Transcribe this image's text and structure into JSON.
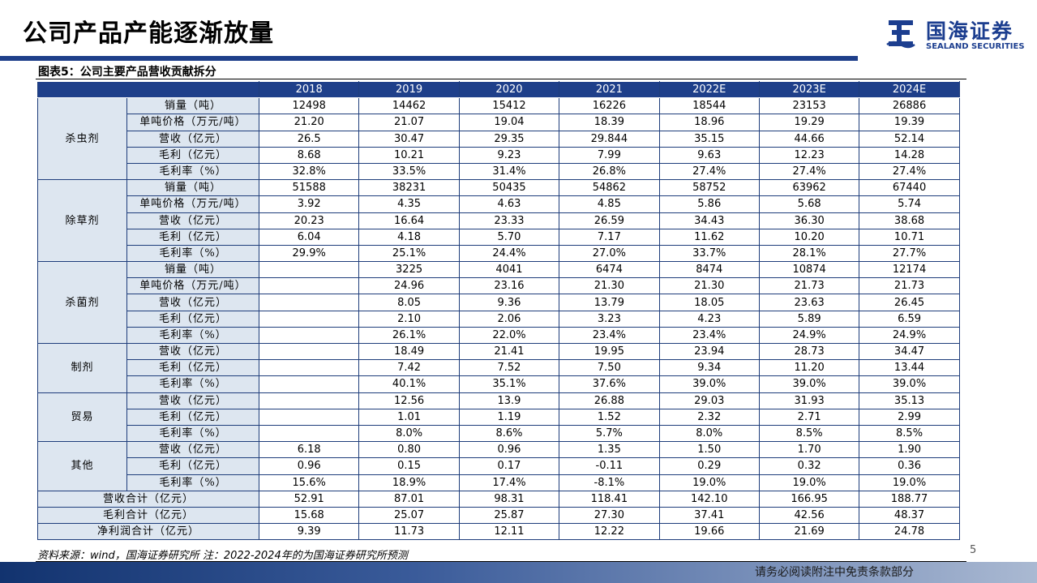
{
  "page": {
    "title": "公司产品产能逐渐放量",
    "logo_cn": "国海证券",
    "logo_en": "SEALAND SECURITIES",
    "caption": "图表5：公司主要产品营收贡献拆分",
    "source": "资料来源：wind，国海证券研究所 注：2022-2024年的为国海证券研究所预测",
    "page_number": "5",
    "disclaimer": "请务必阅读附注中免责条款部分"
  },
  "table": {
    "years": [
      "2018",
      "2019",
      "2020",
      "2021",
      "2022E",
      "2023E",
      "2024E"
    ],
    "groups": [
      {
        "name": "杀虫剂",
        "rows": [
          {
            "metric": "销量（吨）",
            "values": [
              "12498",
              "14462",
              "15412",
              "16226",
              "18544",
              "23153",
              "26886"
            ]
          },
          {
            "metric": "单吨价格（万元/吨）",
            "values": [
              "21.20",
              "21.07",
              "19.04",
              "18.39",
              "18.96",
              "19.29",
              "19.39"
            ]
          },
          {
            "metric": "营收（亿元）",
            "values": [
              "26.5",
              "30.47",
              "29.35",
              "29.844",
              "35.15",
              "44.66",
              "52.14"
            ]
          },
          {
            "metric": "毛利（亿元）",
            "values": [
              "8.68",
              "10.21",
              "9.23",
              "7.99",
              "9.63",
              "12.23",
              "14.28"
            ]
          },
          {
            "metric": "毛利率（%）",
            "values": [
              "32.8%",
              "33.5%",
              "31.4%",
              "26.8%",
              "27.4%",
              "27.4%",
              "27.4%"
            ]
          }
        ]
      },
      {
        "name": "除草剂",
        "rows": [
          {
            "metric": "销量（吨）",
            "values": [
              "51588",
              "38231",
              "50435",
              "54862",
              "58752",
              "63962",
              "67440"
            ]
          },
          {
            "metric": "单吨价格（万元/吨）",
            "values": [
              "3.92",
              "4.35",
              "4.63",
              "4.85",
              "5.86",
              "5.68",
              "5.74"
            ]
          },
          {
            "metric": "营收（亿元）",
            "values": [
              "20.23",
              "16.64",
              "23.33",
              "26.59",
              "34.43",
              "36.30",
              "38.68"
            ]
          },
          {
            "metric": "毛利（亿元）",
            "values": [
              "6.04",
              "4.18",
              "5.70",
              "7.17",
              "11.62",
              "10.20",
              "10.71"
            ]
          },
          {
            "metric": "毛利率（%）",
            "values": [
              "29.9%",
              "25.1%",
              "24.4%",
              "27.0%",
              "33.7%",
              "28.1%",
              "27.7%"
            ]
          }
        ]
      },
      {
        "name": "杀菌剂",
        "rows": [
          {
            "metric": "销量（吨）",
            "values": [
              "",
              "3225",
              "4041",
              "6474",
              "8474",
              "10874",
              "12174"
            ]
          },
          {
            "metric": "单吨价格（万元/吨）",
            "values": [
              "",
              "24.96",
              "23.16",
              "21.30",
              "21.30",
              "21.73",
              "21.73"
            ]
          },
          {
            "metric": "营收（亿元）",
            "values": [
              "",
              "8.05",
              "9.36",
              "13.79",
              "18.05",
              "23.63",
              "26.45"
            ]
          },
          {
            "metric": "毛利（亿元）",
            "values": [
              "",
              "2.10",
              "2.06",
              "3.23",
              "4.23",
              "5.89",
              "6.59"
            ]
          },
          {
            "metric": "毛利率（%）",
            "values": [
              "",
              "26.1%",
              "22.0%",
              "23.4%",
              "23.4%",
              "24.9%",
              "24.9%"
            ]
          }
        ]
      },
      {
        "name": "制剂",
        "rows": [
          {
            "metric": "营收（亿元）",
            "values": [
              "",
              "18.49",
              "21.41",
              "19.95",
              "23.94",
              "28.73",
              "34.47"
            ]
          },
          {
            "metric": "毛利（亿元）",
            "values": [
              "",
              "7.42",
              "7.52",
              "7.50",
              "9.34",
              "11.20",
              "13.44"
            ]
          },
          {
            "metric": "毛利率（%）",
            "values": [
              "",
              "40.1%",
              "35.1%",
              "37.6%",
              "39.0%",
              "39.0%",
              "39.0%"
            ]
          }
        ]
      },
      {
        "name": "贸易",
        "rows": [
          {
            "metric": "营收（亿元）",
            "values": [
              "",
              "12.56",
              "13.9",
              "26.88",
              "29.03",
              "31.93",
              "35.13"
            ]
          },
          {
            "metric": "毛利（亿元）",
            "values": [
              "",
              "1.01",
              "1.19",
              "1.52",
              "2.32",
              "2.71",
              "2.99"
            ]
          },
          {
            "metric": "毛利率（%）",
            "values": [
              "",
              "8.0%",
              "8.6%",
              "5.7%",
              "8.0%",
              "8.5%",
              "8.5%"
            ]
          }
        ]
      },
      {
        "name": "其他",
        "rows": [
          {
            "metric": "营收（亿元）",
            "values": [
              "6.18",
              "0.80",
              "0.96",
              "1.35",
              "1.50",
              "1.70",
              "1.90"
            ]
          },
          {
            "metric": "毛利（亿元）",
            "values": [
              "0.96",
              "0.15",
              "0.17",
              "-0.11",
              "0.29",
              "0.32",
              "0.36"
            ]
          },
          {
            "metric": "毛利率（%）",
            "values": [
              "15.6%",
              "18.9%",
              "17.4%",
              "-8.1%",
              "19.0%",
              "19.0%",
              "19.0%"
            ]
          }
        ]
      }
    ],
    "totals": [
      {
        "label": "营收合计（亿元）",
        "values": [
          "52.91",
          "87.01",
          "98.31",
          "118.41",
          "142.10",
          "166.95",
          "188.77"
        ]
      },
      {
        "label": "毛利合计（亿元）",
        "values": [
          "15.68",
          "25.07",
          "25.87",
          "27.30",
          "37.41",
          "42.56",
          "48.37"
        ]
      },
      {
        "label": "净利润合计（亿元）",
        "values": [
          "9.39",
          "11.73",
          "12.11",
          "12.22",
          "19.66",
          "21.69",
          "24.78"
        ]
      }
    ]
  }
}
